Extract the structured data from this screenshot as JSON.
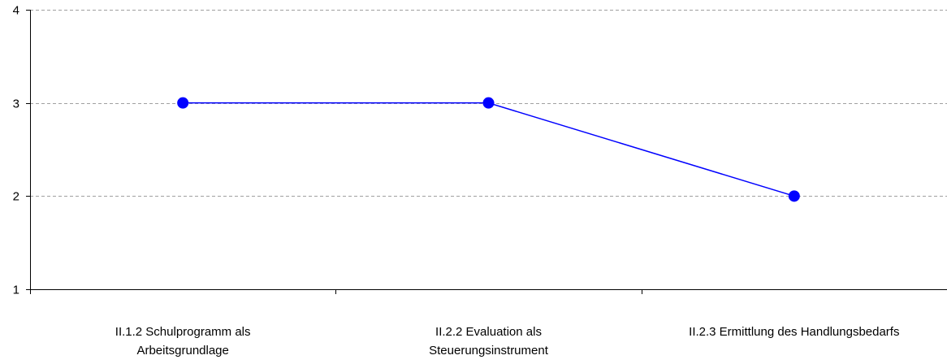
{
  "chart_data": {
    "type": "line",
    "categories": [
      [
        "II.1.2 Schulprogramm als",
        "Arbeitsgrundlage"
      ],
      [
        "II.2.2 Evaluation als",
        "Steuerungsinstrument"
      ],
      [
        "II.2.3 Ermittlung des Handlungsbedarfs"
      ]
    ],
    "series": [
      {
        "values": [
          3,
          3,
          2
        ],
        "color": "#0000ff"
      }
    ],
    "ylim": [
      1,
      4
    ],
    "yticks": [
      1,
      2,
      3,
      4
    ],
    "grid": true,
    "grid_style": "dashed",
    "grid_color": "#a0a0a0",
    "axis_color": "#000000",
    "legend": "none"
  }
}
